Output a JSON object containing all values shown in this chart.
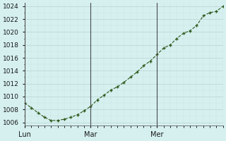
{
  "x_values": [
    0,
    1,
    2,
    3,
    4,
    5,
    6,
    7,
    8,
    9,
    10,
    11,
    12,
    13,
    14,
    15,
    16,
    17,
    18,
    19,
    20,
    21,
    22,
    23,
    24,
    25,
    26,
    27,
    28,
    29,
    30
  ],
  "y_values": [
    1009.0,
    1008.3,
    1007.5,
    1006.8,
    1006.3,
    1006.3,
    1006.5,
    1006.8,
    1007.2,
    1007.8,
    1008.5,
    1009.5,
    1010.2,
    1011.0,
    1011.5,
    1012.2,
    1013.0,
    1013.8,
    1014.8,
    1015.5,
    1016.5,
    1017.5,
    1018.0,
    1019.0,
    1019.8,
    1020.2,
    1021.0,
    1022.5,
    1023.0,
    1023.2,
    1024.0
  ],
  "day_ticks": [
    0,
    10,
    20
  ],
  "day_labels": [
    "Lun",
    "Mar",
    "Mer"
  ],
  "ylim": [
    1005.5,
    1024.5
  ],
  "yticks": [
    1006,
    1008,
    1010,
    1012,
    1014,
    1016,
    1018,
    1020,
    1022,
    1024
  ],
  "line_color": "#2d5a1b",
  "marker_color": "#2d5a1b",
  "bg_color": "#d6f0f0",
  "grid_color_major": "#b8d0d0",
  "grid_color_minor": "#cce0e0",
  "vline_color": "#4a4a4a",
  "xlim": [
    0,
    30
  ]
}
